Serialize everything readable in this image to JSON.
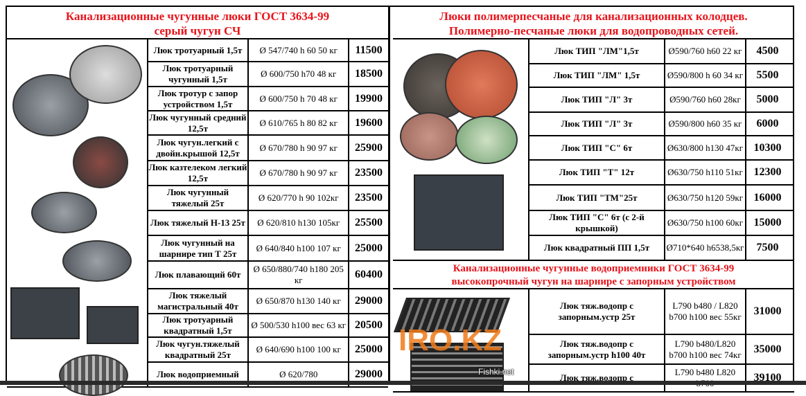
{
  "left": {
    "title_line1": "Канализационные чугунные люки ГОСТ 3634-99",
    "title_line2": "серый чугун  СЧ",
    "rows": [
      {
        "name": "Люк тротуарный 1,5т",
        "spec": "Ø 547/740 h 60 50 кг",
        "price": "11500"
      },
      {
        "name": "Люк тротуарный чугунный 1,5т",
        "spec": "Ø 600/750 h70 48 кг",
        "price": "18500"
      },
      {
        "name": "Люк тротур с запор устройством 1,5т",
        "spec": "Ø 600/750 h 70 48 кг",
        "price": "19900"
      },
      {
        "name": "Люк чугунный средний 12,5т",
        "spec": "Ø 610/765 h 80 82 кг",
        "price": "19600"
      },
      {
        "name": "Люк чугун.легкий с двойн.крышой 12,5т",
        "spec": "Ø 670/780 h 90 97 кг",
        "price": "25900"
      },
      {
        "name": "Люк казтелеком легкий 12,5т",
        "spec": "Ø 670/780 h 90 97 кг",
        "price": "23500"
      },
      {
        "name": "Люк чугунный тяжелый 25т",
        "spec": "Ø 620/770 h 90 102кг",
        "price": "23500"
      },
      {
        "name": "Люк тяжелый Н-13 25т",
        "spec": "Ø 620/810  h130 105кг",
        "price": "25500"
      },
      {
        "name": "Люк чугунный на шарнире тип Т 25т",
        "spec": "Ø 640/840 h100 107 кг",
        "price": "25000"
      },
      {
        "name": "Люк плавающий 60т",
        "spec": "Ø 650/880/740 h180 205 кг",
        "price": "60400"
      },
      {
        "name": "Люк тяжелый магистральный 40т",
        "spec": "Ø 650/870 h130 140 кг",
        "price": "29000"
      },
      {
        "name": "Люк тротуарный квадратный 1,5т",
        "spec": "Ø 500/530 h100 вес 63 кг",
        "price": "20500"
      },
      {
        "name": "Люк чугун.тяжелый квадратный 25т",
        "spec": "Ø 640/690 h100 100 кг",
        "price": "25000"
      },
      {
        "name": "Люк водоприемный",
        "spec": "Ø 620/780",
        "price": "29000"
      }
    ]
  },
  "right": {
    "title_line1": "Люки полимерпесчаные для канализационных колодцев.",
    "title_line2": "Полимерно-песчаные люки для водопроводных сетей.",
    "rows": [
      {
        "name": "Люк ТИП \"ЛМ\"1,5т",
        "spec": "Ø590/760 h60 22 кг",
        "price": "4500"
      },
      {
        "name": "Люк ТИП \"ЛМ\" 1,5т",
        "spec": "Ø590/800 h 60 34 кг",
        "price": "5500"
      },
      {
        "name": "Люк ТИП \"Л\" 3т",
        "spec": "Ø590/760 h60 28кг",
        "price": "5000"
      },
      {
        "name": "Люк ТИП \"Л\" 3т",
        "spec": "Ø590/800 h60 35 кг",
        "price": "6000"
      },
      {
        "name": "Люк ТИП \"С\" 6т",
        "spec": "Ø630/800 h130 47кг",
        "price": "10300"
      },
      {
        "name": "Люк ТИП \"Т\" 12т",
        "spec": "Ø630/750 h110 51кг",
        "price": "12300"
      },
      {
        "name": "Люк ТИП \"ТМ\"25т",
        "spec": "Ø630/750 h120 59кг",
        "price": "16000"
      },
      {
        "name": "Люк ТИП \"С\"  6т (с 2-й крышкой)",
        "spec": "Ø630/750 h100 60кг",
        "price": "15000"
      },
      {
        "name": "Люк квадратный ПП 1,5т",
        "spec": "Ø710*640 h6538,5кг",
        "price": "7500"
      }
    ],
    "sub_title_line1": "Канализационные чугунные водоприемники  ГОСТ 3634-99",
    "sub_title_line2": "высокопрочный чугун на шарнире с запорным устройством",
    "rows2": [
      {
        "name": "Люк тяж.водопр с запорным.устр 25т",
        "spec": "L790 b480 / L820 b700  h100 вес 55кг",
        "price": "31000"
      },
      {
        "name": "Люк тяж.водопр с запорным.устр h100 40т",
        "spec": "L790 b480/L820 b700 h100 вес 74кг",
        "price": "35000"
      },
      {
        "name": "Люк тяж.водопр с",
        "spec": "L790 b480 L820 b700",
        "price": "39100"
      }
    ]
  },
  "watermark": "IRO.KZ",
  "source_mark": "Fishki.net",
  "colors": {
    "heading": "#e8141b",
    "watermark": "#f07b1a"
  }
}
